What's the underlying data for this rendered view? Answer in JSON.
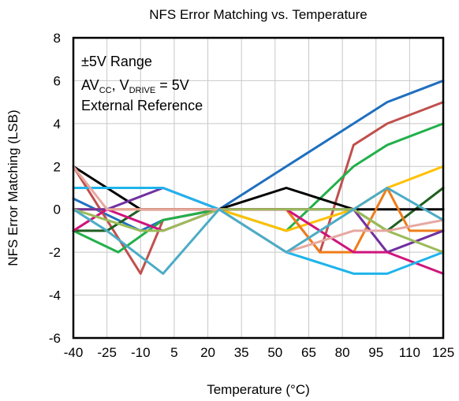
{
  "chart_data": {
    "type": "line",
    "title": "NFS Error Matching vs. Temperature",
    "xlabel": "Temperature (°C)",
    "ylabel": "NFS Error Matching (LSB)",
    "x_ticks": [
      -40,
      -25,
      -10,
      5,
      20,
      35,
      50,
      65,
      80,
      95,
      110,
      125
    ],
    "y_ticks": [
      -6,
      -4,
      -2,
      0,
      2,
      4,
      6,
      8
    ],
    "xlim": [
      -40,
      125
    ],
    "ylim": [
      -6,
      8
    ],
    "grid": true,
    "annotation": {
      "line1": "±5V Range",
      "line2_a": "AV",
      "line2_a_sub": "CC",
      "line2_b": ", V",
      "line2_b_sub": "DRIVE",
      "line2_c": " = 5V",
      "line3": "External Reference"
    },
    "series": [
      {
        "color": "#1f6fbf",
        "x": [
          -40,
          -10,
          0,
          25,
          55,
          85,
          100,
          125
        ],
        "y": [
          0.5,
          -1,
          -0.5,
          0,
          2,
          4,
          5,
          6
        ]
      },
      {
        "color": "#c0504d",
        "x": [
          -40,
          -10,
          0,
          25,
          55,
          70,
          85,
          100,
          125
        ],
        "y": [
          2,
          -3,
          -0.5,
          0,
          0,
          -2,
          3,
          4,
          5
        ]
      },
      {
        "color": "#22b04b",
        "x": [
          -40,
          -20,
          0,
          25,
          55,
          85,
          100,
          125
        ],
        "y": [
          -1,
          -2,
          -0.5,
          0,
          -1,
          2,
          3,
          4
        ]
      },
      {
        "color": "#ffc000",
        "x": [
          -40,
          -10,
          0,
          25,
          55,
          85,
          100,
          125
        ],
        "y": [
          0,
          0,
          0,
          0,
          -1,
          0,
          1,
          2
        ]
      },
      {
        "color": "#1f5f1f",
        "x": [
          -40,
          -25,
          -10,
          25,
          55,
          85,
          100,
          125
        ],
        "y": [
          -1,
          -1,
          0,
          0,
          0,
          0,
          -1,
          1
        ]
      },
      {
        "color": "#000000",
        "x": [
          -40,
          -10,
          0,
          25,
          55,
          85,
          100,
          125
        ],
        "y": [
          2,
          0,
          0,
          0,
          1,
          0,
          0,
          0
        ]
      },
      {
        "color": "#ef7d1a",
        "x": [
          -40,
          -10,
          0,
          25,
          55,
          70,
          85,
          100,
          110,
          125
        ],
        "y": [
          0,
          0,
          0,
          0,
          0,
          -2,
          -2,
          1,
          -1,
          -1
        ]
      },
      {
        "color": "#7030a0",
        "x": [
          -40,
          -25,
          0,
          25,
          55,
          85,
          100,
          125
        ],
        "y": [
          0,
          0,
          1,
          0,
          0,
          0,
          -2,
          -1
        ]
      },
      {
        "color": "#d0147c",
        "x": [
          -40,
          -25,
          0,
          25,
          55,
          85,
          100,
          125
        ],
        "y": [
          -1,
          0,
          -1,
          0,
          0,
          -2,
          -2,
          -3
        ]
      },
      {
        "color": "#1eb4ec",
        "x": [
          -40,
          -10,
          0,
          25,
          55,
          85,
          100,
          125
        ],
        "y": [
          1,
          1,
          1,
          0,
          -2,
          -3,
          -3,
          -2
        ]
      },
      {
        "color": "#9bbb59",
        "x": [
          -40,
          -10,
          0,
          25,
          55,
          85,
          100,
          125
        ],
        "y": [
          0,
          -1,
          -1,
          0,
          0,
          0,
          -1,
          -2
        ]
      },
      {
        "color": "#e6a8a0",
        "x": [
          -40,
          -25,
          0,
          25,
          55,
          85,
          100,
          125
        ],
        "y": [
          2,
          0,
          0,
          0,
          -2,
          -1,
          -1,
          -0.5
        ]
      },
      {
        "color": "#4bacc6",
        "x": [
          -40,
          -25,
          0,
          25,
          55,
          85,
          100,
          125
        ],
        "y": [
          0,
          -1,
          -3,
          0,
          -2,
          0,
          1,
          -0.5
        ]
      }
    ]
  }
}
